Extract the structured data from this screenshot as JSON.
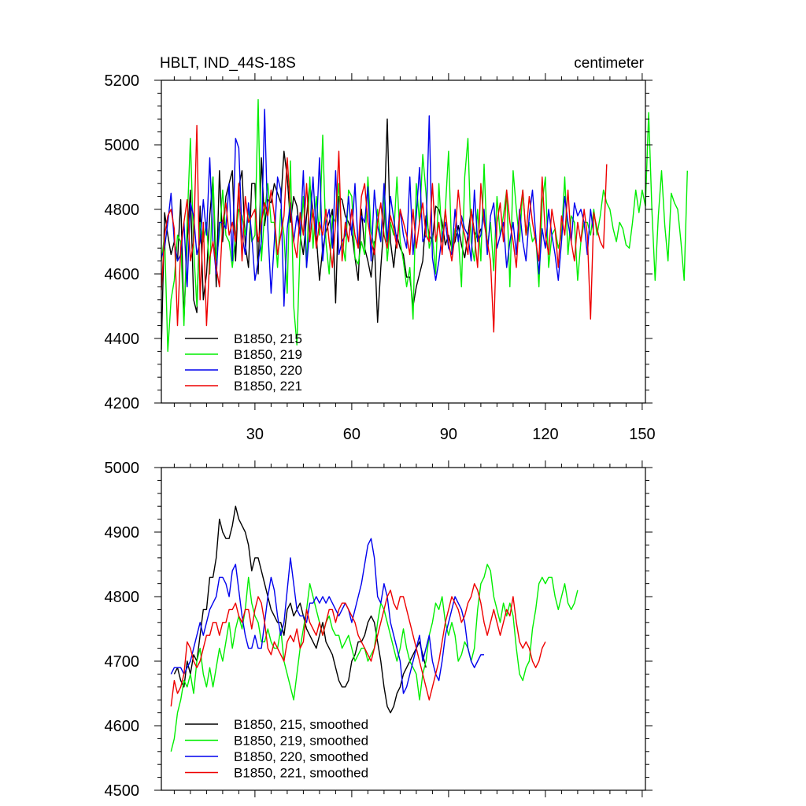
{
  "chart_data": [
    {
      "type": "line",
      "title": "HBLT, IND_44S-18S",
      "units": "centimeter",
      "xlim": [
        1,
        151
      ],
      "ylim": [
        4200,
        5200
      ],
      "xticks": [
        30,
        60,
        90,
        120,
        150
      ],
      "xtick_labels": [
        "30",
        "60",
        "90",
        "120",
        "150"
      ],
      "yticks": [
        4200,
        4400,
        4600,
        4800,
        5000,
        5200
      ],
      "ytick_labels": [
        "4200",
        "4400",
        "4600",
        "4800",
        "5000",
        "5200"
      ],
      "legend_position": "bottom-left",
      "series": [
        {
          "name": "B1850, 215",
          "color": "#000000",
          "start": 1,
          "values": [
            4365,
            4790,
            4720,
            4660,
            4700,
            4640,
            4830,
            4460,
            4700,
            4860,
            4520,
            4480,
            4810,
            4520,
            4600,
            4780,
            4900,
            4560,
            4920,
            4700,
            4840,
            4880,
            4920,
            4640,
            4870,
            4920,
            4690,
            4620,
            4880,
            4880,
            4600,
            4960,
            4750,
            4830,
            4820,
            4880,
            4850,
            4820,
            4980,
            4900,
            4760,
            4840,
            4810,
            4720,
            4660,
            4780,
            4880,
            4790,
            4720,
            4580,
            4680,
            4730,
            4760,
            4800,
            4510,
            4840,
            4830,
            4780,
            4760,
            4730,
            4650,
            4580,
            4800,
            4680,
            4640,
            4590,
            4700,
            4450,
            4620,
            4760,
            5080,
            4700,
            4620,
            4720,
            4680,
            4660,
            4590,
            4590,
            4500,
            4560,
            4600,
            4640,
            4780,
            4720,
            4700,
            4810,
            4800,
            4760,
            4690,
            4720,
            4680,
            4700,
            4750,
            4690,
            4650,
            4720,
            4800,
            4730,
            4710,
            4740
          ]
        },
        {
          "name": "B1850, 219",
          "color": "#00ee00",
          "start": 1,
          "values": [
            4640,
            4720,
            4360,
            4520,
            4580,
            4720,
            4700,
            4440,
            4760,
            5020,
            4680,
            4500,
            4760,
            4700,
            4760,
            4600,
            4900,
            4640,
            4720,
            4860,
            4720,
            4700,
            4620,
            4720,
            4800,
            4780,
            4720,
            4800,
            4700,
            4720,
            5140,
            4640,
            4790,
            4880,
            4760,
            4760,
            4620,
            4800,
            4720,
            4540,
            4950,
            4500,
            4380,
            4690,
            4840,
            4620,
            4900,
            4680,
            4840,
            4720,
            5030,
            4700,
            4600,
            4780,
            4760,
            4880,
            4700,
            4640,
            4860,
            4840,
            4650,
            4630,
            4700,
            4660,
            4900,
            4730,
            4680,
            4800,
            4700,
            4850,
            4640,
            4760,
            4720,
            4900,
            4700,
            4640,
            4560,
            4620,
            4460,
            4880,
            4760,
            4970,
            4850,
            4680,
            4720,
            4600,
            4880,
            4700,
            4800,
            4980,
            4660,
            4740,
            4720,
            4560,
            4900,
            5020,
            4700,
            4640,
            4800,
            4640,
            4940,
            4680,
            4760,
            4610,
            4840,
            4720,
            4780,
            4860,
            4560,
            4920,
            4800,
            4700,
            4860,
            4720,
            4760,
            4700,
            4720,
            4560,
            4820,
            4900,
            4620,
            4720,
            4740,
            4680,
            4720,
            4900,
            4660,
            4780,
            4760,
            4580,
            4700,
            4760,
            4760,
            4720,
            4800,
            4720,
            4780,
            4860,
            4820,
            4800,
            4740,
            4700,
            4760,
            4740,
            4690,
            4680,
            4760,
            4860,
            4790,
            4860,
            4810,
            5100,
            4800,
            4580,
            4780,
            4920,
            4750,
            4640,
            4850,
            4820,
            4800,
            4700,
            4580,
            4920
          ]
        },
        {
          "name": "B1850, 220",
          "color": "#0000ee",
          "start": 1,
          "values": [
            4650,
            4680,
            4760,
            4850,
            4700,
            4640,
            4660,
            4760,
            4560,
            4820,
            4780,
            4660,
            4700,
            4830,
            4720,
            4960,
            4700,
            4600,
            4760,
            4760,
            4740,
            4880,
            4640,
            5020,
            4990,
            4720,
            4660,
            4820,
            4720,
            4580,
            4640,
            4700,
            5110,
            4740,
            4540,
            4700,
            4900,
            4860,
            4500,
            4740,
            4820,
            4700,
            4780,
            4720,
            4920,
            4620,
            4740,
            4900,
            4720,
            4960,
            4640,
            4760,
            4800,
            4680,
            4920,
            4660,
            4700,
            4720,
            4840,
            4720,
            4880,
            4680,
            4780,
            4760,
            4870,
            4640,
            4860,
            4750,
            4700,
            4880,
            4700,
            4840,
            4770,
            4700,
            4800,
            4720,
            4680,
            4900,
            4660,
            4780,
            4930,
            4700,
            4720,
            5090,
            4650,
            4580,
            4640,
            4720,
            4760,
            4680,
            4660,
            4800,
            4700,
            4780,
            4740,
            4720,
            4640,
            4860,
            4700,
            4720,
            4800,
            4660,
            4780,
            4820,
            4680,
            4720,
            4760,
            4620,
            4700,
            4760,
            4660,
            4800,
            4700,
            4640,
            4780,
            4860,
            4720,
            4600,
            4740,
            4680,
            4800,
            4720,
            4660,
            4580,
            4700,
            4840,
            4760,
            4700,
            4820,
            4780,
            4800,
            4760,
            4660,
            4800,
            4720
          ]
        },
        {
          "name": "B1850, 221",
          "color": "#ee0000",
          "start": 1,
          "values": [
            4550,
            4720,
            4780,
            4800,
            4740,
            4440,
            4680,
            4760,
            4830,
            4640,
            4700,
            5060,
            4520,
            4760,
            4440,
            4650,
            4700,
            4620,
            4560,
            4760,
            4820,
            4720,
            4760,
            4700,
            4880,
            4640,
            4840,
            4760,
            4780,
            4800,
            4700,
            4760,
            4820,
            4780,
            4860,
            4780,
            4660,
            4720,
            4780,
            4960,
            4800,
            4700,
            4650,
            4790,
            4720,
            4880,
            4700,
            4800,
            4680,
            4760,
            4720,
            4800,
            4700,
            4620,
            4760,
            4980,
            4640,
            4760,
            4700,
            4800,
            4720,
            4680,
            4840,
            4880,
            4760,
            4700,
            4660,
            4760,
            4820,
            4720,
            4680,
            4780,
            4740,
            4680,
            4800,
            4760,
            4720,
            4660,
            4800,
            4680,
            4760,
            4820,
            4720,
            4700,
            4880,
            4700,
            4760,
            4660,
            4800,
            4700,
            4640,
            4720,
            4860,
            4760,
            4720,
            4660,
            4800,
            4720,
            4620,
            4880,
            4760,
            4700,
            4640,
            4420,
            4760,
            4820,
            4700,
            4860,
            4760,
            4700,
            4620,
            4780,
            4860,
            4720,
            4840,
            4760,
            4700,
            4640,
            4900,
            4720,
            4660,
            4800,
            4740,
            4620,
            4780,
            4720,
            4860,
            4700,
            4640,
            4760,
            4700,
            4800,
            4720,
            4460,
            4790,
            4740,
            4700,
            4680,
            4940
          ]
        }
      ],
      "legend_entries": [
        "B1850, 215",
        "B1850, 219",
        "B1850, 220",
        "B1850, 221"
      ]
    },
    {
      "type": "line",
      "xlim": [
        1,
        151
      ],
      "ylim": [
        4500,
        5000
      ],
      "xticks": [
        30,
        60,
        90,
        120,
        150
      ],
      "yticks": [
        4500,
        4600,
        4700,
        4800,
        4900,
        5000
      ],
      "ytick_labels": [
        "4500",
        "4600",
        "4700",
        "4800",
        "4900",
        "5000"
      ],
      "legend_position": "bottom-left",
      "series": [
        {
          "name": "B1850, 215, smoothed",
          "color": "#000000",
          "start": 5,
          "values": [
            4680,
            4690,
            4670,
            4660,
            4700,
            4680,
            4710,
            4700,
            4740,
            4780,
            4780,
            4830,
            4830,
            4860,
            4920,
            4900,
            4890,
            4890,
            4910,
            4940,
            4920,
            4910,
            4900,
            4880,
            4840,
            4860,
            4860,
            4840,
            4820,
            4800,
            4780,
            4770,
            4760,
            4760,
            4740,
            4780,
            4790,
            4770,
            4780,
            4790,
            4770,
            4750,
            4740,
            4730,
            4720,
            4740,
            4760,
            4730,
            4720,
            4710,
            4690,
            4670,
            4660,
            4660,
            4670,
            4700,
            4710,
            4730,
            4730,
            4740,
            4760,
            4770,
            4760,
            4730,
            4700,
            4660,
            4630,
            4620,
            4630,
            4650,
            4660,
            4680,
            4690,
            4700,
            4710,
            4720,
            4730,
            4710,
            4690
          ]
        },
        {
          "name": "B1850, 219, smoothed",
          "color": "#00ee00",
          "start": 4,
          "values": [
            4560,
            4580,
            4620,
            4640,
            4670,
            4660,
            4680,
            4650,
            4700,
            4720,
            4680,
            4660,
            4690,
            4660,
            4690,
            4720,
            4700,
            4730,
            4760,
            4720,
            4750,
            4770,
            4750,
            4780,
            4830,
            4790,
            4770,
            4760,
            4730,
            4730,
            4750,
            4730,
            4720,
            4720,
            4750,
            4700,
            4680,
            4660,
            4640,
            4680,
            4720,
            4750,
            4780,
            4820,
            4800,
            4780,
            4760,
            4740,
            4760,
            4770,
            4750,
            4740,
            4740,
            4720,
            4730,
            4740,
            4720,
            4700,
            4710,
            4720,
            4720,
            4700,
            4710,
            4720,
            4760,
            4790,
            4780,
            4760,
            4740,
            4720,
            4700,
            4720,
            4750,
            4720,
            4700,
            4690,
            4680,
            4640,
            4680,
            4700,
            4740,
            4760,
            4790,
            4780,
            4800,
            4760,
            4740,
            4760,
            4740,
            4700,
            4710,
            4730,
            4720,
            4700,
            4720,
            4780,
            4820,
            4830,
            4850,
            4840,
            4800,
            4780,
            4760,
            4790,
            4770,
            4790,
            4770,
            4720,
            4680,
            4670,
            4690,
            4700,
            4750,
            4780,
            4820,
            4830,
            4820,
            4830,
            4830,
            4800,
            4780,
            4800,
            4820,
            4790,
            4780,
            4790,
            4810
          ]
        },
        {
          "name": "B1850, 220, smoothed",
          "color": "#0000ee",
          "start": 4,
          "values": [
            4680,
            4690,
            4690,
            4690,
            4680,
            4690,
            4700,
            4720,
            4740,
            4760,
            4740,
            4760,
            4780,
            4790,
            4800,
            4830,
            4830,
            4820,
            4800,
            4840,
            4850,
            4810,
            4770,
            4740,
            4720,
            4720,
            4740,
            4720,
            4720,
            4760,
            4800,
            4830,
            4810,
            4770,
            4740,
            4760,
            4810,
            4860,
            4820,
            4780,
            4770,
            4770,
            4760,
            4790,
            4790,
            4800,
            4790,
            4800,
            4790,
            4800,
            4790,
            4780,
            4770,
            4780,
            4790,
            4780,
            4760,
            4780,
            4800,
            4820,
            4850,
            4880,
            4890,
            4860,
            4800,
            4790,
            4820,
            4800,
            4760,
            4740,
            4720,
            4700,
            4650,
            4660,
            4680,
            4700,
            4720,
            4740,
            4700,
            4720,
            4740,
            4700,
            4680,
            4670,
            4700,
            4740,
            4760,
            4780,
            4800,
            4790,
            4780,
            4760,
            4720,
            4700,
            4690,
            4700,
            4710,
            4710
          ]
        },
        {
          "name": "B1850, 221, smoothed",
          "color": "#ee0000",
          "start": 4,
          "values": [
            4630,
            4670,
            4650,
            4660,
            4680,
            4730,
            4720,
            4700,
            4690,
            4700,
            4720,
            4740,
            4740,
            4760,
            4760,
            4740,
            4760,
            4760,
            4780,
            4780,
            4790,
            4770,
            4760,
            4780,
            4780,
            4750,
            4780,
            4800,
            4790,
            4760,
            4720,
            4710,
            4730,
            4720,
            4710,
            4700,
            4730,
            4740,
            4730,
            4750,
            4720,
            4730,
            4780,
            4760,
            4750,
            4740,
            4760,
            4740,
            4760,
            4780,
            4780,
            4760,
            4780,
            4790,
            4790,
            4780,
            4770,
            4760,
            4740,
            4730,
            4720,
            4710,
            4700,
            4720,
            4740,
            4760,
            4780,
            4800,
            4810,
            4790,
            4780,
            4800,
            4800,
            4780,
            4760,
            4740,
            4720,
            4700,
            4680,
            4660,
            4640,
            4660,
            4680,
            4700,
            4730,
            4760,
            4780,
            4800,
            4790,
            4780,
            4760,
            4770,
            4790,
            4800,
            4820,
            4810,
            4790,
            4760,
            4740,
            4760,
            4780,
            4760,
            4740,
            4760,
            4780,
            4770,
            4800,
            4760,
            4730,
            4720,
            4730,
            4720,
            4700,
            4690,
            4700,
            4720,
            4730
          ]
        }
      ],
      "legend_entries": [
        "B1850, 215, smoothed",
        "B1850, 219, smoothed",
        "B1850, 220, smoothed",
        "B1850, 221, smoothed"
      ]
    }
  ]
}
